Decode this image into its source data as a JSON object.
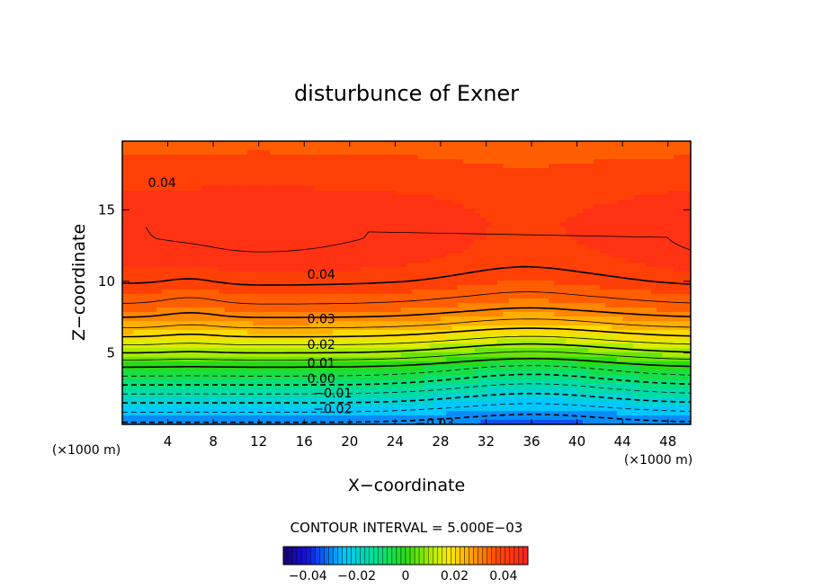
{
  "chart_data": {
    "type": "heatmap",
    "subtype": "filled-contour",
    "title": "disturbunce of Exner",
    "xlabel": "X−coordinate",
    "ylabel": "Z−coordinate",
    "x_unit_left": "(×1000 m)",
    "x_unit_right": "(×1000 m)",
    "xlim": [
      0,
      50
    ],
    "ylim": [
      0,
      19.8
    ],
    "xticks": [
      4,
      8,
      12,
      16,
      20,
      24,
      28,
      32,
      36,
      40,
      44,
      48
    ],
    "yticks": [
      5,
      10,
      15
    ],
    "contour_interval_text": "CONTOUR INTERVAL = 5.000E−03",
    "contour_interval": 0.005,
    "value_range": [
      -0.05,
      0.05
    ],
    "colorbar": {
      "ticks": [
        -0.04,
        -0.02,
        0,
        0.02,
        0.04
      ],
      "tick_labels": [
        "−0.04",
        "−0.02",
        "0",
        "0.02",
        "0.04"
      ]
    },
    "profile_z": [
      0,
      1,
      2,
      3,
      4,
      5,
      6,
      7,
      8,
      9,
      10,
      11,
      12,
      13,
      14,
      15,
      16,
      17,
      18,
      19,
      19.8
    ],
    "profile_value": [
      -0.031,
      -0.024,
      -0.016,
      -0.008,
      0.0,
      0.01,
      0.019,
      0.027,
      0.033,
      0.037,
      0.04,
      0.042,
      0.043,
      0.0435,
      0.0435,
      0.043,
      0.042,
      0.04,
      0.038,
      0.037,
      0.036
    ],
    "contour_labels": [
      {
        "text": "0.04",
        "x": 3.5,
        "z": 16.9
      },
      {
        "text": "0.04",
        "x": 17.5,
        "z": 10.5
      },
      {
        "text": "0.03",
        "x": 17.5,
        "z": 7.4
      },
      {
        "text": "0.02",
        "x": 17.5,
        "z": 5.6
      },
      {
        "text": "0.01",
        "x": 17.5,
        "z": 4.3
      },
      {
        "text": "0.00",
        "x": 17.5,
        "z": 3.2
      },
      {
        "text": "−0.01",
        "x": 18.5,
        "z": 2.2
      },
      {
        "text": "−0.02",
        "x": 18.5,
        "z": 1.1
      },
      {
        "text": "−0.03",
        "x": 27.5,
        "z": 0.1
      }
    ]
  }
}
